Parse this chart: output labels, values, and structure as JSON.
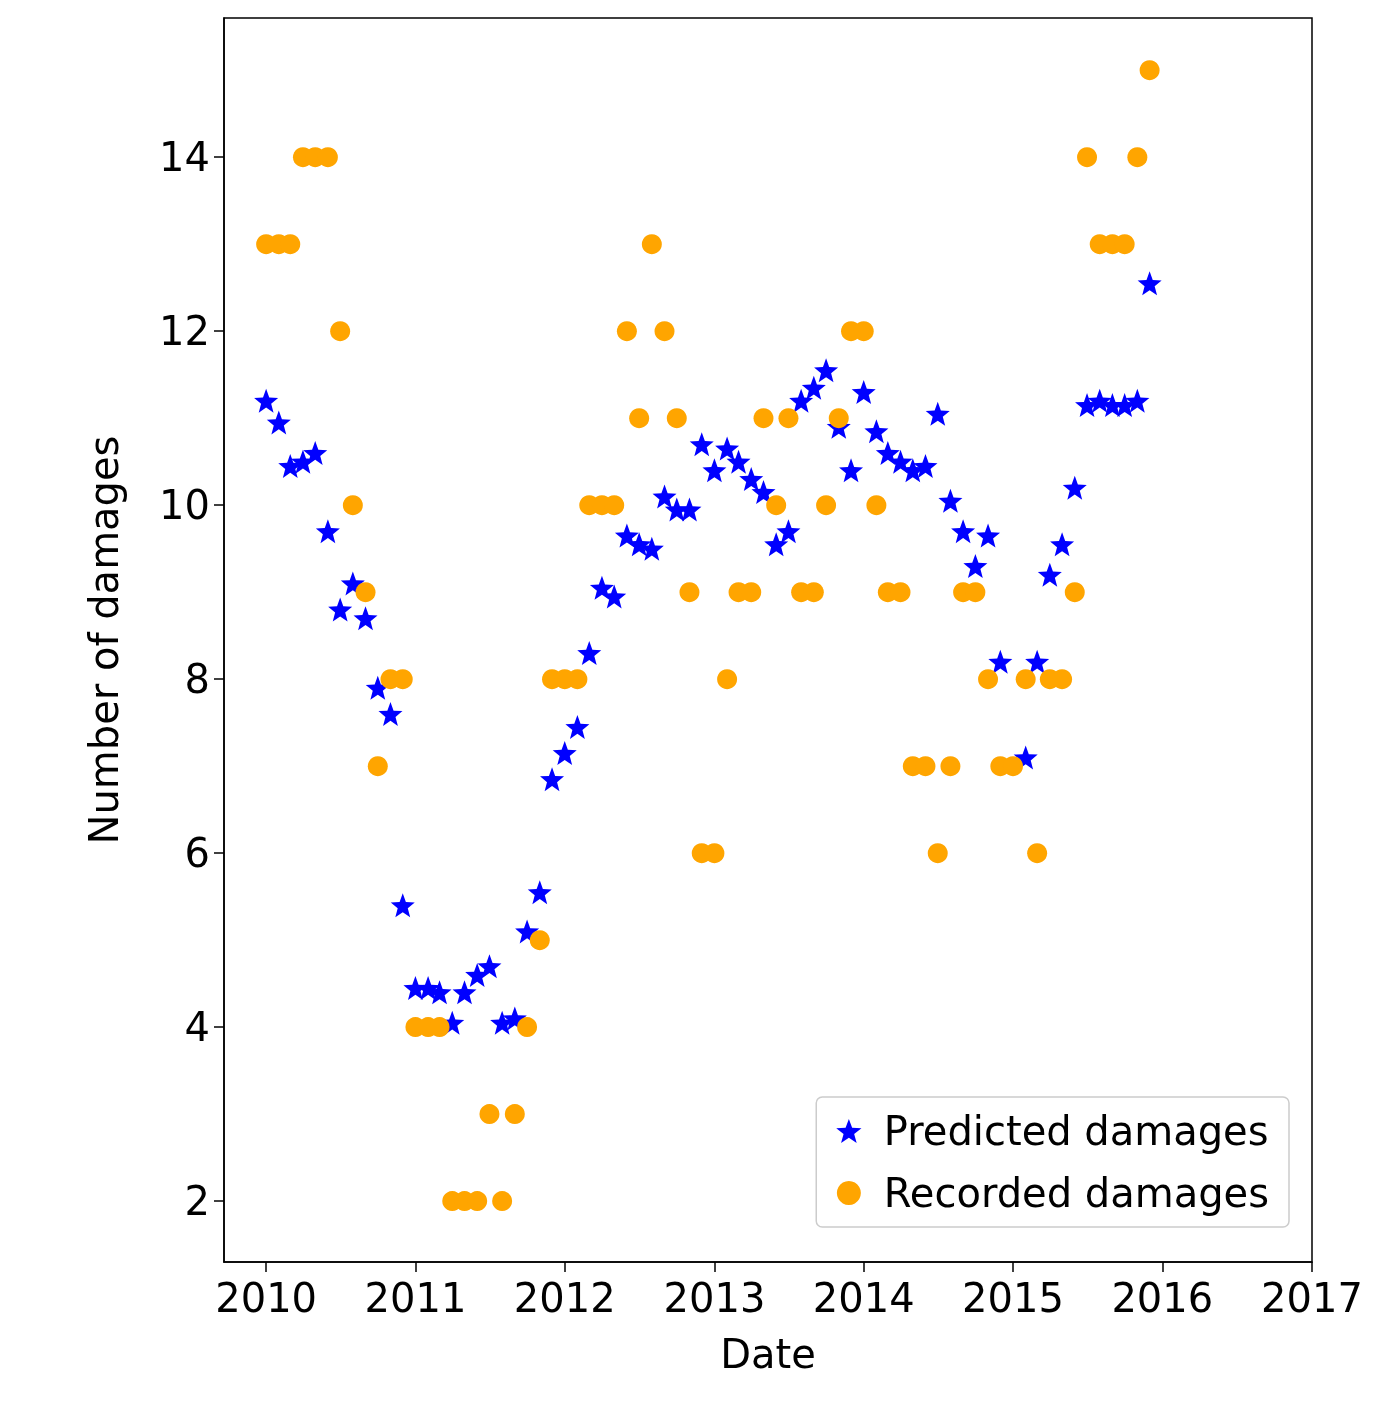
{
  "chart_data": {
    "type": "scatter",
    "xlabel": "Date",
    "ylabel": "Number of damages",
    "x": [
      "2010-01",
      "2010-02",
      "2010-03",
      "2010-04",
      "2010-05",
      "2010-06",
      "2010-07",
      "2010-08",
      "2010-09",
      "2010-10",
      "2010-11",
      "2010-12",
      "2011-01",
      "2011-02",
      "2011-03",
      "2011-04",
      "2011-05",
      "2011-06",
      "2011-07",
      "2011-08",
      "2011-09",
      "2011-10",
      "2011-11",
      "2011-12",
      "2012-01",
      "2012-02",
      "2012-03",
      "2012-04",
      "2012-05",
      "2012-06",
      "2012-07",
      "2012-08",
      "2012-09",
      "2012-10",
      "2012-11",
      "2012-12",
      "2013-01",
      "2013-02",
      "2013-03",
      "2013-04",
      "2013-05",
      "2013-06",
      "2013-07",
      "2013-08",
      "2013-09",
      "2013-10",
      "2013-11",
      "2013-12",
      "2014-01",
      "2014-02",
      "2014-03",
      "2014-04",
      "2014-05",
      "2014-06",
      "2014-07",
      "2014-08",
      "2014-09",
      "2014-10",
      "2014-11",
      "2014-12",
      "2015-01",
      "2015-02",
      "2015-03",
      "2015-04",
      "2015-05",
      "2015-06",
      "2015-07",
      "2015-08",
      "2015-09",
      "2015-10",
      "2015-11",
      "2015-12"
    ],
    "series": [
      {
        "name": "Predicted damages",
        "color": "#0000ff",
        "marker": "star",
        "values": [
          11.2,
          10.95,
          10.45,
          10.5,
          10.6,
          9.7,
          8.8,
          9.1,
          8.7,
          7.9,
          7.6,
          5.4,
          4.45,
          4.45,
          4.4,
          4.05,
          4.4,
          4.6,
          4.7,
          4.05,
          4.1,
          5.1,
          5.55,
          6.85,
          7.15,
          7.45,
          8.3,
          9.05,
          8.95,
          9.65,
          9.55,
          9.5,
          10.1,
          9.95,
          9.95,
          10.7,
          10.4,
          10.65,
          10.5,
          10.3,
          10.15,
          9.55,
          9.7,
          11.2,
          11.35,
          11.55,
          10.9,
          10.4,
          11.3,
          10.85,
          10.6,
          10.5,
          10.4,
          10.45,
          11.05,
          10.05,
          9.7,
          9.3,
          9.65,
          8.2,
          null,
          7.1,
          8.2,
          9.2,
          9.55,
          10.2,
          11.15,
          11.2,
          11.15,
          11.15,
          11.2,
          12.55
        ]
      },
      {
        "name": "Recorded damages",
        "color": "#ffa500",
        "marker": "circle",
        "values": [
          13,
          13,
          13,
          14,
          14,
          14,
          12,
          10,
          9,
          7,
          8,
          8,
          4,
          4,
          4,
          2,
          2,
          2,
          3,
          2,
          3,
          4,
          5,
          8,
          8,
          8,
          10,
          10,
          10,
          12,
          11,
          13,
          12,
          11,
          9,
          6,
          6,
          8,
          9,
          9,
          11,
          10,
          11,
          9,
          9,
          10,
          11,
          12,
          12,
          10,
          9,
          9,
          7,
          7,
          6,
          7,
          9,
          9,
          8,
          7,
          7,
          8,
          6,
          8,
          8,
          9,
          14,
          13,
          13,
          13,
          14,
          15
        ]
      }
    ],
    "xlim": [
      "2009-09-20",
      "2017-01-01"
    ],
    "xticks": [
      "2010",
      "2011",
      "2012",
      "2013",
      "2014",
      "2015",
      "2016",
      "2017"
    ],
    "ylim": [
      1.3,
      15.6
    ],
    "yticks": [
      2,
      4,
      6,
      8,
      10,
      12,
      14
    ],
    "grid": false,
    "legend": "bottom right"
  }
}
